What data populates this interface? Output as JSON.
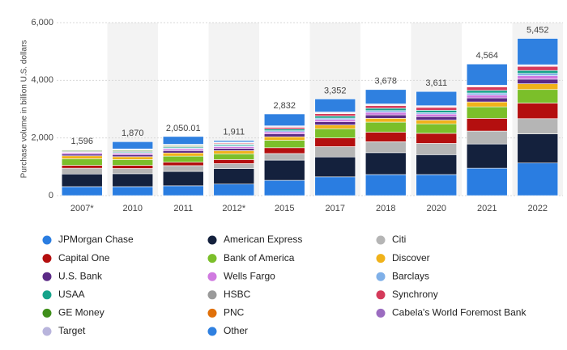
{
  "chart_data": {
    "type": "bar",
    "stacked": true,
    "y_label": "Purchase volume in billion U.S. dollars",
    "categories": [
      "2007*",
      "2010",
      "2011",
      "2012*",
      "2015",
      "2017",
      "2018",
      "2020",
      "2021",
      "2022"
    ],
    "totals": [
      1596,
      1870,
      2050.01,
      1911,
      2832,
      3352,
      3678,
      3611,
      4564,
      5452
    ],
    "total_labels": [
      "1,596",
      "1,870",
      "2,050.01",
      "1,911",
      "2,832",
      "3,352",
      "3,678",
      "3,611",
      "4,564",
      "5,452"
    ],
    "ylim": [
      0,
      6000
    ],
    "yticks": [
      0,
      {
        "value": 2000,
        "label": "2,000"
      },
      {
        "value": 4000,
        "label": "4,000"
      },
      {
        "value": 6000,
        "label": "6,000"
      }
    ],
    "grid": true,
    "series": [
      {
        "name": "JPMorgan Chase",
        "color": "#2a7de1",
        "values": [
          310,
          310,
          340,
          400,
          530,
          650,
          730,
          730,
          950,
          1130
        ]
      },
      {
        "name": "American Express",
        "color": "#14213d",
        "values": [
          440,
          450,
          500,
          540,
          700,
          690,
          760,
          690,
          840,
          1010
        ]
      },
      {
        "name": "Citi",
        "color": "#b5b5b5",
        "values": [
          200,
          180,
          200,
          170,
          230,
          360,
          380,
          390,
          450,
          530
        ]
      },
      {
        "name": "Capital One",
        "color": "#b40f0f",
        "values": [
          100,
          110,
          120,
          140,
          200,
          300,
          330,
          350,
          440,
          540
        ]
      },
      {
        "name": "Bank of America",
        "color": "#7bbf2a",
        "values": [
          230,
          200,
          210,
          200,
          260,
          320,
          350,
          330,
          400,
          470
        ]
      },
      {
        "name": "Discover",
        "color": "#f0b21a",
        "values": [
          100,
          100,
          110,
          110,
          120,
          130,
          130,
          130,
          170,
          200
        ]
      },
      {
        "name": "U.S. Bank",
        "color": "#5b2a86",
        "values": [
          60,
          70,
          80,
          80,
          100,
          110,
          120,
          120,
          140,
          160
        ]
      },
      {
        "name": "Wells Fargo",
        "color": "#d07ae0",
        "values": [
          50,
          50,
          60,
          60,
          70,
          80,
          90,
          90,
          100,
          120
        ]
      },
      {
        "name": "Barclays",
        "color": "#7fb0e8",
        "values": [
          0,
          20,
          25,
          30,
          40,
          50,
          60,
          50,
          70,
          80
        ]
      },
      {
        "name": "USAA",
        "color": "#15a38a",
        "values": [
          20,
          30,
          35,
          40,
          60,
          70,
          80,
          80,
          90,
          100
        ]
      },
      {
        "name": "HSBC",
        "color": "#9a9a9a",
        "values": [
          30,
          30,
          30,
          20,
          0,
          0,
          0,
          0,
          0,
          0
        ]
      },
      {
        "name": "Synchrony",
        "color": "#d43a5a",
        "values": [
          0,
          0,
          0,
          30,
          60,
          80,
          90,
          100,
          120,
          140
        ]
      },
      {
        "name": "GE Money",
        "color": "#3f8f1a",
        "values": [
          30,
          30,
          30,
          0,
          0,
          0,
          0,
          0,
          0,
          0
        ]
      },
      {
        "name": "PNC",
        "color": "#e0700a",
        "values": [
          0,
          10,
          10,
          10,
          10,
          20,
          20,
          20,
          20,
          20
        ]
      },
      {
        "name": "Cabela's World Foremost Bank",
        "color": "#9b6cc0",
        "values": [
          0,
          10,
          10,
          10,
          20,
          20,
          20,
          20,
          20,
          20
        ]
      },
      {
        "name": "Target",
        "color": "#b8b4dc",
        "values": [
          20,
          20,
          20,
          20,
          20,
          20,
          20,
          20,
          20,
          20
        ]
      },
      {
        "name": "Other",
        "color": "#2f80e0",
        "values": [
          6,
          250,
          270.01,
          51,
          412,
          452,
          498,
          491,
          734,
          912
        ]
      }
    ]
  }
}
